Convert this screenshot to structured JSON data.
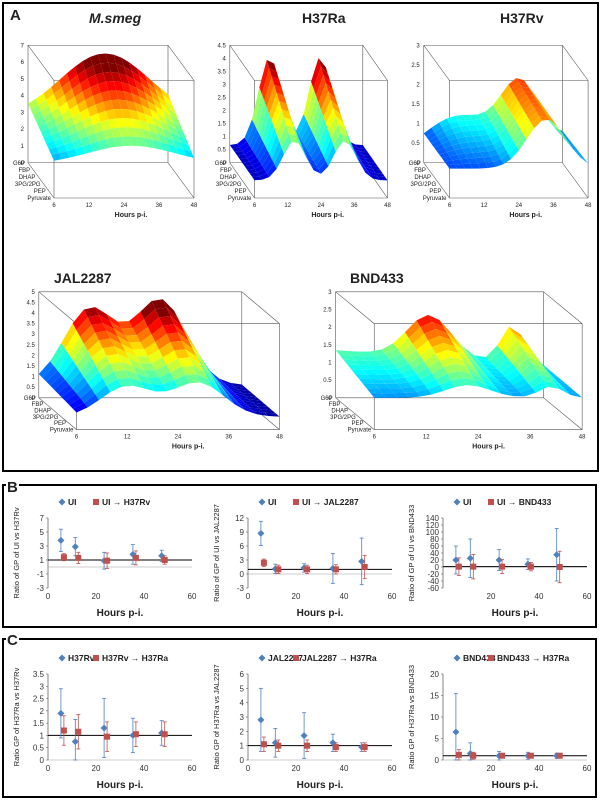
{
  "panels": {
    "A": "A",
    "B": "B",
    "C": "C"
  },
  "surfaces": [
    {
      "title": "M.smeg",
      "italic": true,
      "zticks": [
        "0",
        "1",
        "2",
        "3",
        "4",
        "5",
        "6",
        "7"
      ],
      "zmax": 7,
      "yticks": [
        "G6P",
        "FBP",
        "DHAP",
        "3PG/2PG",
        "PEP",
        "Pyruvate"
      ],
      "xticks": [
        "6",
        "12",
        "24",
        "36",
        "48"
      ],
      "xlabel": "Hours p-i."
    },
    {
      "title": "H37Ra",
      "italic": false,
      "zticks": [
        "0",
        "0.5",
        "1",
        "1.5",
        "2",
        "2.5",
        "3",
        "3.5",
        "4",
        "4.5"
      ],
      "zmax": 4.5,
      "yticks": [
        "G6P",
        "FBP",
        "DHAP",
        "3PG/2PG",
        "PEP",
        "Pyruvate"
      ],
      "xticks": [
        "6",
        "12",
        "24",
        "36",
        "48"
      ],
      "xlabel": "Hours p-i."
    },
    {
      "title": "H37Rv",
      "italic": false,
      "zticks": [
        "0",
        "0.5",
        "1",
        "1.5",
        "2",
        "2.5",
        "3"
      ],
      "zmax": 3,
      "yticks": [
        "G6P",
        "FBP",
        "DHAP",
        "3PG/2PG",
        "PEP",
        "Pyruvate"
      ],
      "xticks": [
        "6",
        "12",
        "24",
        "36",
        "48"
      ],
      "xlabel": "Hours p-i."
    },
    {
      "title": "JAL2287",
      "italic": false,
      "zticks": [
        "0",
        "0.5",
        "1",
        "1.5",
        "2",
        "2.5",
        "3",
        "3.5",
        "4",
        "4.5",
        "5"
      ],
      "zmax": 5,
      "yticks": [
        "G6P",
        "FBP",
        "DHAP",
        "3PG/2PG",
        "PEP",
        "Pyruvate"
      ],
      "xticks": [
        "6",
        "12",
        "24",
        "36",
        "48"
      ],
      "xlabel": "Hours p-i."
    },
    {
      "title": "BND433",
      "italic": false,
      "zticks": [
        "0",
        "0.5",
        "1",
        "1.5",
        "2",
        "2.5",
        "3"
      ],
      "zmax": 3,
      "yticks": [
        "G6P",
        "FBP",
        "DHAP",
        "3PG/2PG",
        "PEP",
        "Pyruvate"
      ],
      "xticks": [
        "6",
        "12",
        "24",
        "36",
        "48"
      ],
      "xlabel": "Hours p-i."
    }
  ],
  "chart_data": [
    {
      "type": "scatter",
      "ylabel": "Ratio of GP of UI vs H37Rv",
      "xlabel": "Hours p-i.",
      "xlim": [
        0,
        60
      ],
      "ylim": [
        -3,
        7
      ],
      "yticks": [
        -3,
        -1,
        1,
        3,
        5,
        7
      ],
      "xticks": [
        0,
        20,
        40,
        60
      ],
      "refline": 1,
      "series": [
        {
          "name": "UI",
          "color": "#4f81bd",
          "marker": "diamond",
          "x": [
            6,
            12,
            24,
            36,
            48
          ],
          "y": [
            3.8,
            2.9,
            0.9,
            1.8,
            1.6
          ],
          "err": [
            1.6,
            1.3,
            1.2,
            1.4,
            0.8
          ]
        },
        {
          "name": "UI → H37Rv",
          "color": "#c0504d",
          "marker": "square",
          "x": [
            6,
            12,
            24,
            36,
            48
          ],
          "y": [
            1.4,
            1.3,
            0.9,
            1.3,
            1.0
          ],
          "err": [
            0.5,
            0.8,
            1.1,
            1.0,
            0.6
          ]
        }
      ]
    },
    {
      "type": "scatter",
      "ylabel": "Ratio of GP of UI vs JAL2287",
      "xlabel": "Hours p-i.",
      "xlim": [
        0,
        60
      ],
      "ylim": [
        -3,
        12
      ],
      "yticks": [
        -3,
        0,
        3,
        6,
        9,
        12
      ],
      "xticks": [
        0,
        20,
        40,
        60
      ],
      "refline": 1,
      "series": [
        {
          "name": "UI",
          "color": "#4f81bd",
          "marker": "diamond",
          "x": [
            6,
            12,
            24,
            36,
            48
          ],
          "y": [
            8.7,
            1.1,
            1.3,
            1.2,
            2.7
          ],
          "err": [
            2.6,
            1.0,
            0.9,
            3.2,
            5.0
          ]
        },
        {
          "name": "UI → JAL2287",
          "color": "#c0504d",
          "marker": "square",
          "x": [
            6,
            12,
            24,
            36,
            48
          ],
          "y": [
            2.4,
            1.0,
            1.0,
            1.0,
            1.5
          ],
          "err": [
            0.8,
            0.9,
            0.9,
            1.0,
            2.5
          ]
        }
      ]
    },
    {
      "type": "scatter",
      "ylabel": "Ratio of GP of UI vs BND433",
      "xlabel": "Hours p-i.",
      "xlim": [
        0,
        60
      ],
      "ylim": [
        -60,
        140
      ],
      "yticks": [
        -60,
        -40,
        -20,
        0,
        20,
        40,
        60,
        80,
        100,
        120,
        140
      ],
      "xticks": [
        20,
        40,
        60
      ],
      "refline": 1,
      "series": [
        {
          "name": "UI",
          "color": "#4f81bd",
          "marker": "diamond",
          "x": [
            6,
            12,
            24,
            36,
            48
          ],
          "y": [
            20,
            25,
            20,
            8,
            35
          ],
          "err": [
            40,
            55,
            30,
            15,
            75
          ]
        },
        {
          "name": "UI → BND433",
          "color": "#c0504d",
          "marker": "square",
          "x": [
            6,
            12,
            24,
            36,
            48
          ],
          "y": [
            1,
            1,
            1,
            1,
            0
          ],
          "err": [
            25,
            35,
            20,
            12,
            45
          ]
        }
      ]
    },
    {
      "type": "scatter",
      "ylabel": "Ratio GP of H37Ra vs H37Rv",
      "xlabel": "Hours p-i.",
      "xlim": [
        0,
        60
      ],
      "ylim": [
        0,
        3.5
      ],
      "yticks": [
        0,
        0.5,
        1,
        1.5,
        2,
        2.5,
        3,
        3.5
      ],
      "xticks": [
        0,
        20,
        40,
        60
      ],
      "refline": 1,
      "series": [
        {
          "name": "H37Rv",
          "color": "#4f81bd",
          "marker": "diamond",
          "x": [
            6,
            12,
            24,
            36,
            48
          ],
          "y": [
            1.9,
            0.75,
            1.3,
            1.0,
            1.1
          ],
          "err": [
            1.0,
            0.9,
            1.2,
            0.7,
            0.5
          ]
        },
        {
          "name": "H37Rv → H37Ra",
          "color": "#c0504d",
          "marker": "square",
          "x": [
            6,
            12,
            24,
            36,
            48
          ],
          "y": [
            1.2,
            1.15,
            0.95,
            1.05,
            1.05
          ],
          "err": [
            0.6,
            0.7,
            0.6,
            0.5,
            0.5
          ]
        }
      ]
    },
    {
      "type": "scatter",
      "ylabel": "Ratio GP of H37Ra vs JAL2287",
      "xlabel": "Hours p-i.",
      "xlim": [
        0,
        60
      ],
      "ylim": [
        0,
        6
      ],
      "yticks": [
        0,
        1,
        2,
        3,
        4,
        5,
        6
      ],
      "xticks": [
        0,
        20,
        40,
        60
      ],
      "refline": 1,
      "series": [
        {
          "name": "JAL2287",
          "color": "#4f81bd",
          "marker": "diamond",
          "x": [
            6,
            12,
            24,
            36,
            48
          ],
          "y": [
            2.8,
            1.2,
            1.7,
            1.2,
            0.9
          ],
          "err": [
            2.2,
            1.0,
            1.6,
            0.6,
            0.3
          ]
        },
        {
          "name": "JAL2287 → H37Ra",
          "color": "#c0504d",
          "marker": "square",
          "x": [
            6,
            12,
            24,
            36,
            48
          ],
          "y": [
            1.1,
            1.0,
            1.0,
            0.9,
            0.9
          ],
          "err": [
            0.5,
            0.4,
            0.4,
            0.3,
            0.3
          ]
        }
      ]
    },
    {
      "type": "scatter",
      "ylabel": "Ratio GP of H37Ra vs BND433",
      "xlabel": "Hours p-i.",
      "xlim": [
        0,
        60
      ],
      "ylim": [
        0,
        20
      ],
      "yticks": [
        0,
        5,
        10,
        15,
        20
      ],
      "xticks": [
        20,
        40,
        60
      ],
      "refline": 1,
      "series": [
        {
          "name": "BND433",
          "color": "#4f81bd",
          "marker": "diamond",
          "x": [
            6,
            12,
            24,
            36,
            48
          ],
          "y": [
            6.5,
            1.5,
            1.0,
            1.0,
            1.0
          ],
          "err": [
            9.0,
            2.5,
            1.0,
            0.8,
            0.6
          ]
        },
        {
          "name": "BND433 → H37Ra",
          "color": "#c0504d",
          "marker": "square",
          "x": [
            6,
            12,
            24,
            36,
            48
          ],
          "y": [
            1.2,
            1.0,
            1.0,
            1.0,
            1.0
          ],
          "err": [
            1.2,
            0.8,
            0.5,
            0.5,
            0.4
          ]
        }
      ]
    }
  ]
}
